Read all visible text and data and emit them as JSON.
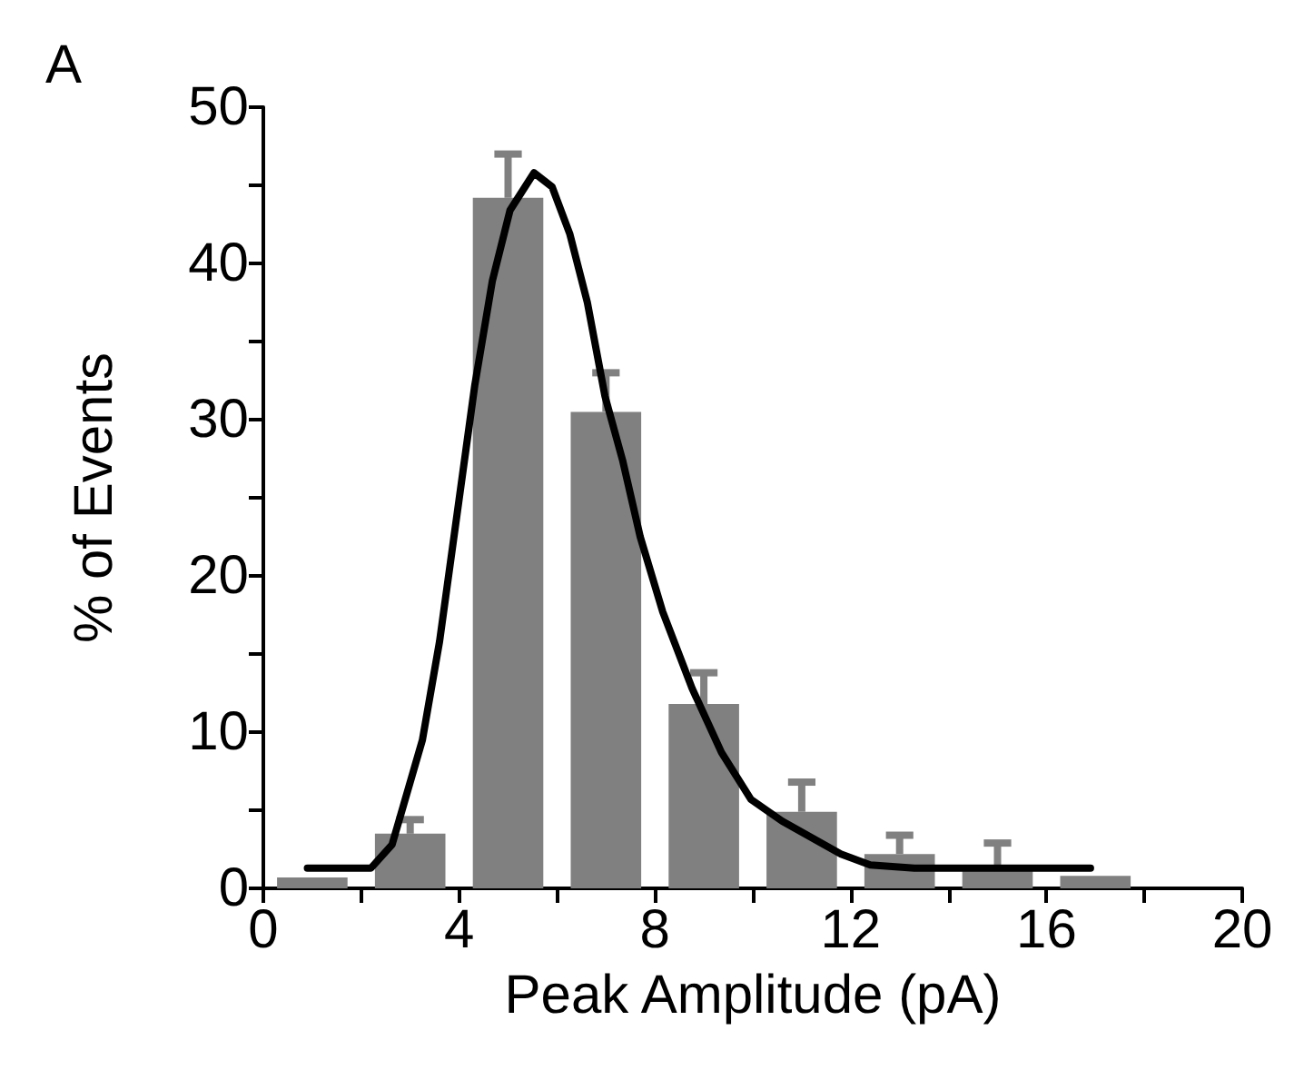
{
  "chart_data": {
    "type": "histogram",
    "title": "A",
    "xlabel": "Peak Amplitude (pA)",
    "ylabel": "% of Events",
    "bins": [
      0,
      2,
      4,
      6,
      8,
      10,
      12,
      14,
      16,
      18
    ],
    "series": [
      {
        "color": "#808080",
        "values": [
          0.7,
          3.5,
          44.2,
          30.5,
          11.8,
          4.9,
          2.2,
          1.2,
          0.8
        ],
        "errors": [
          null,
          [
            3.5,
            4.4
          ],
          [
            44.2,
            47.0
          ],
          [
            30.5,
            33.0
          ],
          [
            11.8,
            13.8
          ],
          [
            4.9,
            6.8
          ],
          [
            2.2,
            3.4
          ],
          [
            1.2,
            2.9
          ],
          null
        ]
      },
      {
        "type": "line",
        "color": "#000000",
        "x": [
          0.9,
          2.2,
          2.63,
          3.25,
          3.6,
          3.96,
          4.32,
          4.68,
          5.04,
          5.53,
          5.9,
          6.26,
          6.62,
          6.98,
          7.34,
          7.7,
          8.16,
          8.76,
          9.36,
          9.96,
          10.6,
          11.8,
          12.4,
          13.3,
          16.9
        ],
        "values": [
          1.3,
          1.3,
          2.8,
          9.5,
          15.8,
          24,
          32.2,
          38.9,
          43.4,
          45.8,
          44.9,
          41.9,
          37.5,
          31.5,
          27.4,
          22.5,
          17.7,
          12.8,
          8.7,
          5.7,
          4.3,
          2.2,
          1.5,
          1.3,
          1.3
        ]
      }
    ],
    "xlim": [
      0,
      20
    ],
    "xticks": [
      0,
      {
        "value": 2,
        "label": null
      },
      4,
      {
        "value": 6,
        "label": null
      },
      8,
      {
        "value": 10,
        "label": null
      },
      12,
      {
        "value": 14,
        "label": null
      },
      16,
      {
        "value": 18,
        "label": null
      },
      20
    ],
    "ylim": [
      0,
      50
    ],
    "yticks": [
      0,
      {
        "value": 5,
        "label": null
      },
      10,
      {
        "value": 15,
        "label": null
      },
      20,
      {
        "value": 25,
        "label": null
      },
      30,
      {
        "value": 35,
        "label": null
      },
      40,
      {
        "value": 45,
        "label": null
      },
      50
    ],
    "grid": false,
    "marker": "none",
    "line_style": "solid"
  }
}
